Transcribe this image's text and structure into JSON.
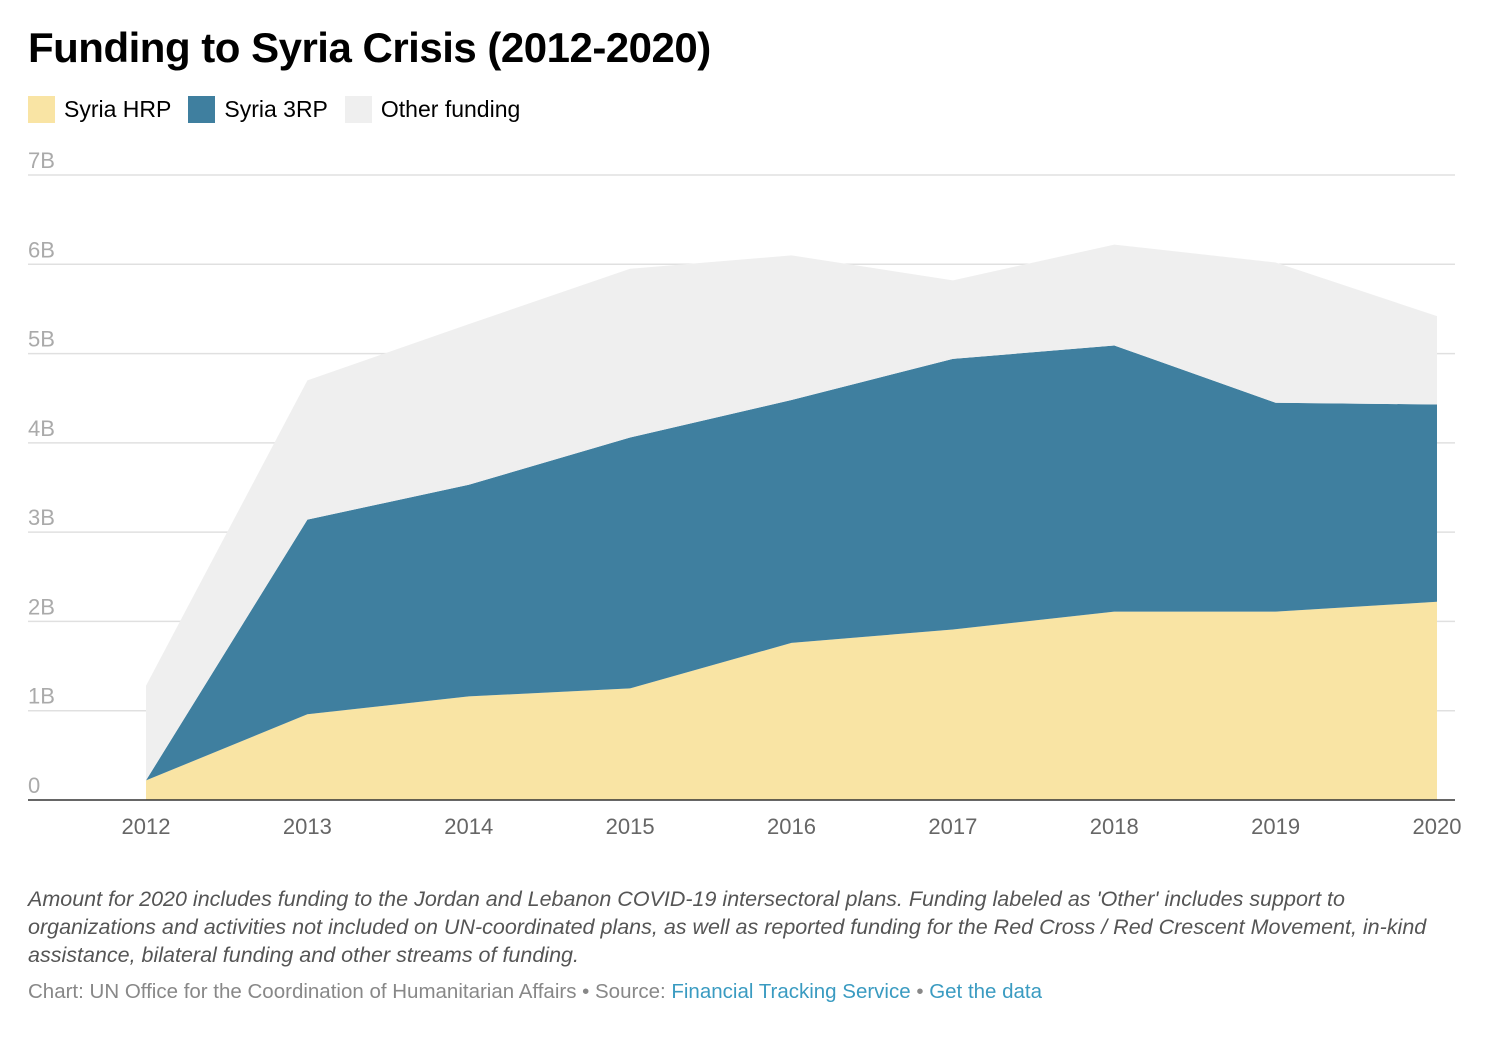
{
  "title": "Funding to Syria Crisis (2012-2020)",
  "colors": {
    "hrp": "#f9e4a4",
    "rp3": "#3f7f9f",
    "other": "#efefef",
    "grid": "#e0e0e0",
    "tick": "#aaaaaa",
    "axis": "#333333",
    "link": "#3a9bc1"
  },
  "legend": [
    {
      "label": "Syria HRP",
      "color": "#f9e4a4"
    },
    {
      "label": "Syria 3RP",
      "color": "#3f7f9f"
    },
    {
      "label": "Other funding",
      "color": "#efefef"
    }
  ],
  "chart_data": {
    "type": "area",
    "stacked": true,
    "title": "Funding to Syria Crisis (2012-2020)",
    "x": [
      "2012",
      "2013",
      "2014",
      "2015",
      "2016",
      "2017",
      "2018",
      "2019",
      "2020"
    ],
    "ylim": [
      0,
      7000000000
    ],
    "yticks": [
      {
        "value": 0,
        "label": "0"
      },
      {
        "value": 1000000000,
        "label": "1B"
      },
      {
        "value": 2000000000,
        "label": "2B"
      },
      {
        "value": 3000000000,
        "label": "3B"
      },
      {
        "value": 4000000000,
        "label": "4B"
      },
      {
        "value": 5000000000,
        "label": "5B"
      },
      {
        "value": 6000000000,
        "label": "6B"
      },
      {
        "value": 7000000000,
        "label": "7B"
      }
    ],
    "grid": true,
    "legend_position": "top-left",
    "series": [
      {
        "name": "Syria HRP",
        "color": "#f9e4a4",
        "values": [
          220000000,
          960000000,
          1160000000,
          1250000000,
          1760000000,
          1910000000,
          2110000000,
          2110000000,
          2220000000
        ]
      },
      {
        "name": "Syria 3RP",
        "color": "#3f7f9f",
        "values": [
          0,
          2180000000,
          2370000000,
          2810000000,
          2720000000,
          3030000000,
          2980000000,
          2340000000,
          2210000000
        ]
      },
      {
        "name": "Other funding",
        "color": "#efefef",
        "values": [
          1060000000,
          1560000000,
          1800000000,
          1890000000,
          1620000000,
          880000000,
          1130000000,
          1570000000,
          990000000
        ]
      }
    ]
  },
  "footnote": "Amount for 2020 includes funding to the Jordan and Lebanon COVID-19 intersectoral plans. Funding labeled as 'Other' includes support to organizations and activities not included on UN-coordinated plans, as well as reported funding for the Red Cross / Red Crescent Movement, in-kind assistance, bilateral funding and other streams of funding.",
  "source": {
    "prefix": "Chart: UN Office for the Coordination of Humanitarian Affairs • Source: ",
    "source_link": "Financial Tracking Service",
    "separator": " • ",
    "data_link": "Get the data"
  }
}
